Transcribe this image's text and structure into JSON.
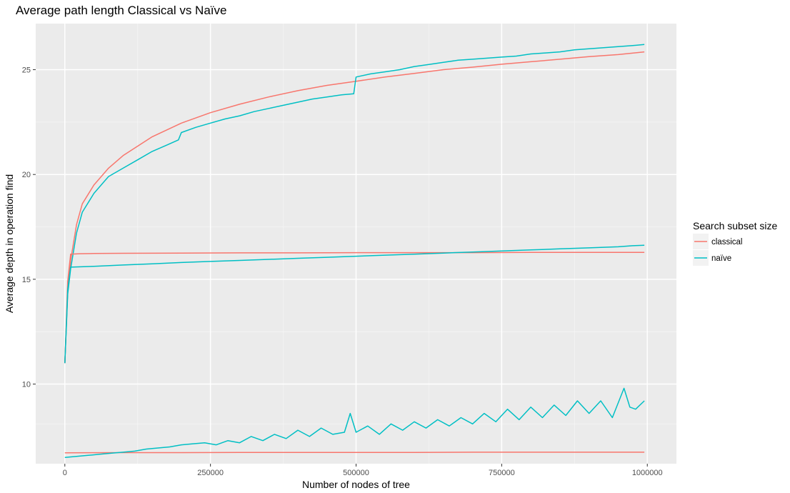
{
  "chart_data": {
    "type": "line",
    "title": "Average path length Classical vs Naïve",
    "xlabel": "Number of nodes of tree",
    "ylabel": "Average depth in operation find",
    "xlim": [
      -50000,
      1050000
    ],
    "ylim": [
      6.2,
      27.2
    ],
    "x_ticks": [
      0,
      250000,
      500000,
      750000,
      1000000
    ],
    "x_tick_labels": [
      "0",
      "250000",
      "500000",
      "750000",
      "1000000"
    ],
    "y_ticks": [
      10,
      15,
      20,
      25
    ],
    "y_tick_labels": [
      "10",
      "15",
      "20",
      "25"
    ],
    "grid": true,
    "legend": {
      "title": "Search subset size",
      "position": "right",
      "entries": [
        {
          "label": "classical",
          "color": "#F8766D"
        },
        {
          "label": "naïve",
          "color": "#00BFC4"
        }
      ]
    },
    "series": [
      {
        "group": "classical",
        "color": "#F8766D",
        "x": [
          0,
          5000,
          10000,
          20000,
          30000,
          50000,
          75000,
          100000,
          150000,
          200000,
          250000,
          300000,
          350000,
          400000,
          450000,
          500000,
          550000,
          600000,
          650000,
          700000,
          750000,
          800000,
          850000,
          900000,
          950000,
          995000
        ],
        "y": [
          11.0,
          14.5,
          15.9,
          17.6,
          18.6,
          19.5,
          20.3,
          20.9,
          21.8,
          22.45,
          22.95,
          23.35,
          23.7,
          24.0,
          24.25,
          24.45,
          24.65,
          24.82,
          25.0,
          25.12,
          25.26,
          25.38,
          25.5,
          25.62,
          25.72,
          25.85
        ]
      },
      {
        "group": "naïve",
        "color": "#00BFC4",
        "x": [
          0,
          5000,
          10000,
          20000,
          30000,
          50000,
          75000,
          100000,
          125000,
          150000,
          175000,
          195000,
          200000,
          225000,
          250000,
          275000,
          300000,
          325000,
          350000,
          375000,
          400000,
          425000,
          450000,
          475000,
          496000,
          500000,
          525000,
          550000,
          575000,
          600000,
          625000,
          650000,
          675000,
          700000,
          725000,
          750000,
          775000,
          800000,
          825000,
          850000,
          875000,
          900000,
          925000,
          950000,
          975000,
          995000
        ],
        "y": [
          11.0,
          14.3,
          15.5,
          17.2,
          18.2,
          19.1,
          19.9,
          20.3,
          20.7,
          21.1,
          21.4,
          21.65,
          22.0,
          22.25,
          22.45,
          22.65,
          22.8,
          23.0,
          23.15,
          23.3,
          23.45,
          23.6,
          23.7,
          23.8,
          23.85,
          24.65,
          24.8,
          24.9,
          25.0,
          25.15,
          25.25,
          25.35,
          25.45,
          25.5,
          25.55,
          25.6,
          25.65,
          25.75,
          25.8,
          25.85,
          25.95,
          26.0,
          26.05,
          26.1,
          26.15,
          26.2
        ]
      },
      {
        "group": "classical",
        "color": "#F8766D",
        "x": [
          0,
          5000,
          10000,
          25000,
          50000,
          100000,
          200000,
          300000,
          400000,
          500000,
          600000,
          700000,
          800000,
          900000,
          995000
        ],
        "y": [
          11.0,
          14.9,
          16.2,
          16.22,
          16.23,
          16.24,
          16.25,
          16.26,
          16.26,
          16.27,
          16.27,
          16.27,
          16.28,
          16.28,
          16.28
        ]
      },
      {
        "group": "naïve",
        "color": "#00BFC4",
        "x": [
          0,
          5000,
          10000,
          50000,
          100000,
          150000,
          200000,
          250000,
          300000,
          350000,
          400000,
          450000,
          500000,
          550000,
          600000,
          650000,
          700000,
          750000,
          800000,
          850000,
          900000,
          950000,
          975000,
          995000
        ],
        "y": [
          11.0,
          14.5,
          15.58,
          15.62,
          15.68,
          15.74,
          15.8,
          15.85,
          15.9,
          15.95,
          16.0,
          16.05,
          16.1,
          16.15,
          16.2,
          16.25,
          16.3,
          16.35,
          16.4,
          16.45,
          16.5,
          16.55,
          16.6,
          16.62
        ]
      },
      {
        "group": "classical",
        "color": "#F8766D",
        "x": [
          0,
          100000,
          200000,
          300000,
          400000,
          500000,
          600000,
          700000,
          800000,
          900000,
          995000
        ],
        "y": [
          6.72,
          6.73,
          6.73,
          6.74,
          6.74,
          6.74,
          6.74,
          6.75,
          6.75,
          6.75,
          6.75
        ]
      },
      {
        "group": "naïve",
        "color": "#00BFC4",
        "x": [
          0,
          20000,
          40000,
          60000,
          80000,
          100000,
          120000,
          140000,
          160000,
          180000,
          200000,
          220000,
          240000,
          260000,
          280000,
          300000,
          320000,
          340000,
          360000,
          380000,
          400000,
          420000,
          440000,
          460000,
          480000,
          490000,
          500000,
          520000,
          540000,
          560000,
          580000,
          600000,
          620000,
          640000,
          660000,
          680000,
          700000,
          720000,
          740000,
          760000,
          780000,
          800000,
          820000,
          840000,
          860000,
          880000,
          900000,
          920000,
          940000,
          960000,
          970000,
          980000,
          995000
        ],
        "y": [
          6.5,
          6.55,
          6.6,
          6.65,
          6.7,
          6.75,
          6.8,
          6.9,
          6.95,
          7.0,
          7.1,
          7.15,
          7.2,
          7.1,
          7.3,
          7.2,
          7.5,
          7.3,
          7.6,
          7.4,
          7.8,
          7.5,
          7.9,
          7.6,
          7.7,
          8.6,
          7.7,
          8.0,
          7.6,
          8.1,
          7.8,
          8.2,
          7.9,
          8.3,
          8.0,
          8.4,
          8.1,
          8.6,
          8.2,
          8.8,
          8.3,
          8.9,
          8.4,
          9.0,
          8.5,
          9.2,
          8.6,
          9.2,
          8.4,
          9.8,
          8.9,
          8.8,
          9.2
        ]
      }
    ]
  }
}
